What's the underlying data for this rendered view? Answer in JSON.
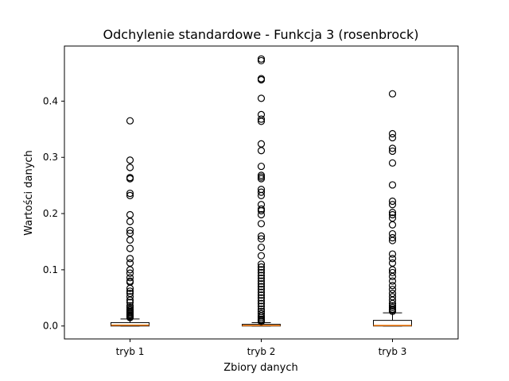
{
  "chart_data": {
    "type": "box",
    "title": "Odchylenie standardowe - Funkcja 3 (rosenbrock)",
    "xlabel": "Zbiory danych",
    "ylabel": "Wartości danych",
    "ylim": [
      -0.023,
      0.498
    ],
    "yticks": [
      0.0,
      0.1,
      0.2,
      0.3,
      0.4
    ],
    "ytick_labels": [
      "0.0",
      "0.1",
      "0.2",
      "0.3",
      "0.4"
    ],
    "grid": false,
    "colors": {
      "box": "#000000",
      "median": "#ff7f0e",
      "flier": "#000000"
    },
    "series": [
      {
        "name": "tryb 1",
        "whisker_low": 0.0,
        "q1": 0.0,
        "median": 0.0015,
        "q3": 0.006,
        "whisker_high": 0.0125,
        "outliers": [
          0.365,
          0.295,
          0.282,
          0.264,
          0.262,
          0.236,
          0.232,
          0.198,
          0.186,
          0.17,
          0.165,
          0.153,
          0.138,
          0.12,
          0.112,
          0.1,
          0.094,
          0.086,
          0.08,
          0.078,
          0.067,
          0.062,
          0.058,
          0.052,
          0.046,
          0.042,
          0.036,
          0.033,
          0.03,
          0.028,
          0.026,
          0.024,
          0.022,
          0.02,
          0.019,
          0.017,
          0.016,
          0.015
        ]
      },
      {
        "name": "tryb 2",
        "whisker_low": 0.0,
        "q1": 0.0,
        "median": 0.001,
        "q3": 0.003,
        "whisker_high": 0.006,
        "outliers": [
          0.475,
          0.472,
          0.44,
          0.438,
          0.405,
          0.376,
          0.368,
          0.364,
          0.324,
          0.312,
          0.284,
          0.268,
          0.265,
          0.262,
          0.243,
          0.238,
          0.232,
          0.216,
          0.208,
          0.205,
          0.198,
          0.182,
          0.16,
          0.155,
          0.14,
          0.125,
          0.11,
          0.105,
          0.1,
          0.095,
          0.09,
          0.085,
          0.08,
          0.075,
          0.07,
          0.065,
          0.06,
          0.055,
          0.05,
          0.045,
          0.04,
          0.035,
          0.03,
          0.026,
          0.022,
          0.018,
          0.015,
          0.012,
          0.01,
          0.008
        ]
      },
      {
        "name": "tryb 3",
        "whisker_low": 0.0,
        "q1": 0.0,
        "median": 0.001,
        "q3": 0.01,
        "whisker_high": 0.0235,
        "outliers": [
          0.413,
          0.342,
          0.335,
          0.316,
          0.311,
          0.29,
          0.251,
          0.222,
          0.216,
          0.202,
          0.198,
          0.192,
          0.18,
          0.164,
          0.157,
          0.152,
          0.128,
          0.12,
          0.112,
          0.1,
          0.095,
          0.088,
          0.08,
          0.072,
          0.065,
          0.058,
          0.052,
          0.046,
          0.04,
          0.036,
          0.033,
          0.03,
          0.028,
          0.026
        ]
      }
    ]
  }
}
